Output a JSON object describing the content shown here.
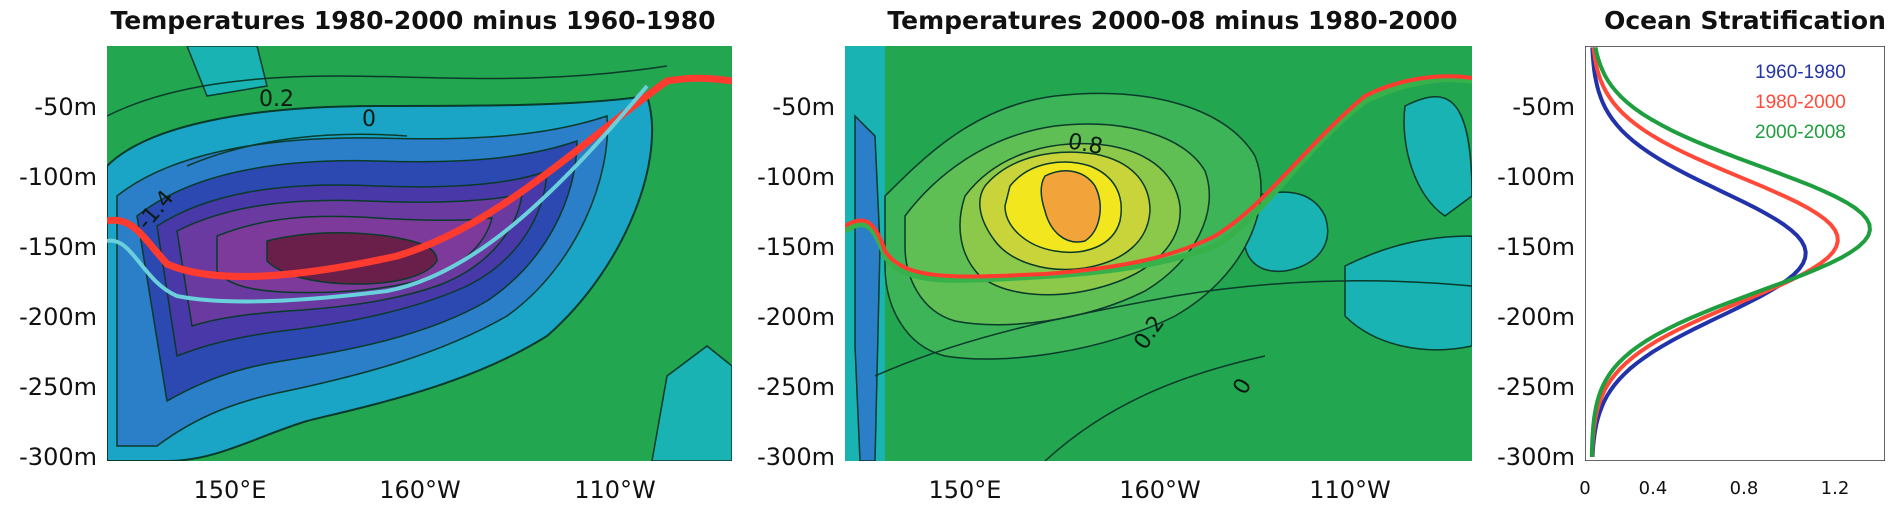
{
  "titles": {
    "panel1": "Temperatures 1980-2000 minus 1960-1980",
    "panel2": "Temperatures 2000-08 minus 1980-2000",
    "panel3": "Ocean Stratification"
  },
  "colors": {
    "blue": "#2233aa",
    "red": "#ff4a3a",
    "green": "#1e9e3e",
    "cyan": "#6ad0dc"
  },
  "chart_data": [
    {
      "type": "heatmap",
      "title": "Temperatures 1980-2000 minus 1960-1980",
      "y_ticks": [
        "-50m",
        "-100m",
        "-150m",
        "-200m",
        "-250m",
        "-300m"
      ],
      "x_ticks": [
        "150°E",
        "160°W",
        "110°W"
      ],
      "ylim": [
        -300,
        0
      ],
      "contour_labels": [
        "0.2",
        "0",
        "-1.4"
      ],
      "lines": [
        {
          "name": "red",
          "x": [
            "140°E",
            "150°E",
            "160°W",
            "110°W",
            "85°W"
          ],
          "y": [
            -130,
            -165,
            -150,
            -70,
            -35
          ]
        },
        {
          "name": "cyan",
          "x": [
            "140°E",
            "150°E",
            "160°W",
            "110°W",
            "85°W"
          ],
          "y": [
            -140,
            -180,
            -180,
            -80,
            -35
          ]
        }
      ]
    },
    {
      "type": "heatmap",
      "title": "Temperatures 2000-08 minus 1980-2000",
      "y_ticks": [
        "-50m",
        "-100m",
        "-150m",
        "-200m",
        "-250m",
        "-300m"
      ],
      "x_ticks": [
        "150°E",
        "160°W",
        "110°W"
      ],
      "ylim": [
        -300,
        0
      ],
      "contour_labels": [
        "0.8",
        "0.2",
        "0"
      ],
      "lines": [
        {
          "name": "red",
          "x": [
            "140°E",
            "150°E",
            "160°W",
            "110°W",
            "85°W"
          ],
          "y": [
            -125,
            -165,
            -150,
            -45,
            -35
          ]
        },
        {
          "name": "green",
          "x": [
            "140°E",
            "150°E",
            "160°W",
            "110°W",
            "85°W"
          ],
          "y": [
            -130,
            -165,
            -145,
            -45,
            -35
          ]
        }
      ]
    },
    {
      "type": "line",
      "title": "Ocean Stratification",
      "y_ticks": [
        "-50m",
        "-100m",
        "-150m",
        "-200m",
        "-250m",
        "-300m"
      ],
      "x_ticks": [
        "0",
        "0.4",
        "0.8",
        "1.2"
      ],
      "xlim": [
        0,
        1.4
      ],
      "ylim": [
        -300,
        0
      ],
      "series": [
        {
          "name": "1960-1980",
          "color": "#2233aa",
          "peak_x": 1.0,
          "peak_depth": -150
        },
        {
          "name": "1980-2000",
          "color": "#ff4a3a",
          "peak_x": 1.15,
          "peak_depth": -140
        },
        {
          "name": "2000-2008",
          "color": "#1e9e3e",
          "peak_x": 1.3,
          "peak_depth": -132
        }
      ]
    }
  ]
}
